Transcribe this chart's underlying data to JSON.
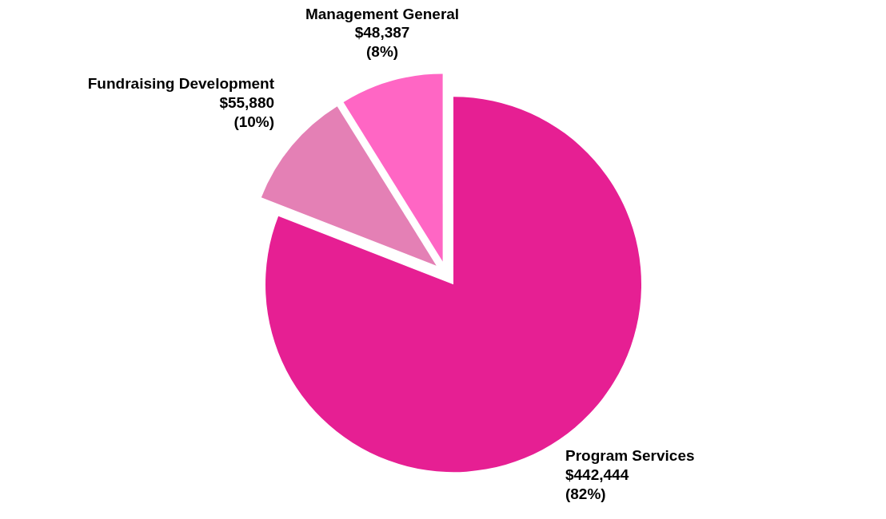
{
  "chart_data": {
    "type": "pie",
    "categories": [
      "Program Services",
      "Fundraising Development",
      "Management General"
    ],
    "values": [
      442444,
      55880,
      48387
    ],
    "colors": [
      "#e61f93",
      "#e480b5",
      "#ff66c4"
    ],
    "value_labels": [
      "$442,444 (82%)",
      "$55,880 (10%)",
      "$48,387 (8%)"
    ]
  }
}
